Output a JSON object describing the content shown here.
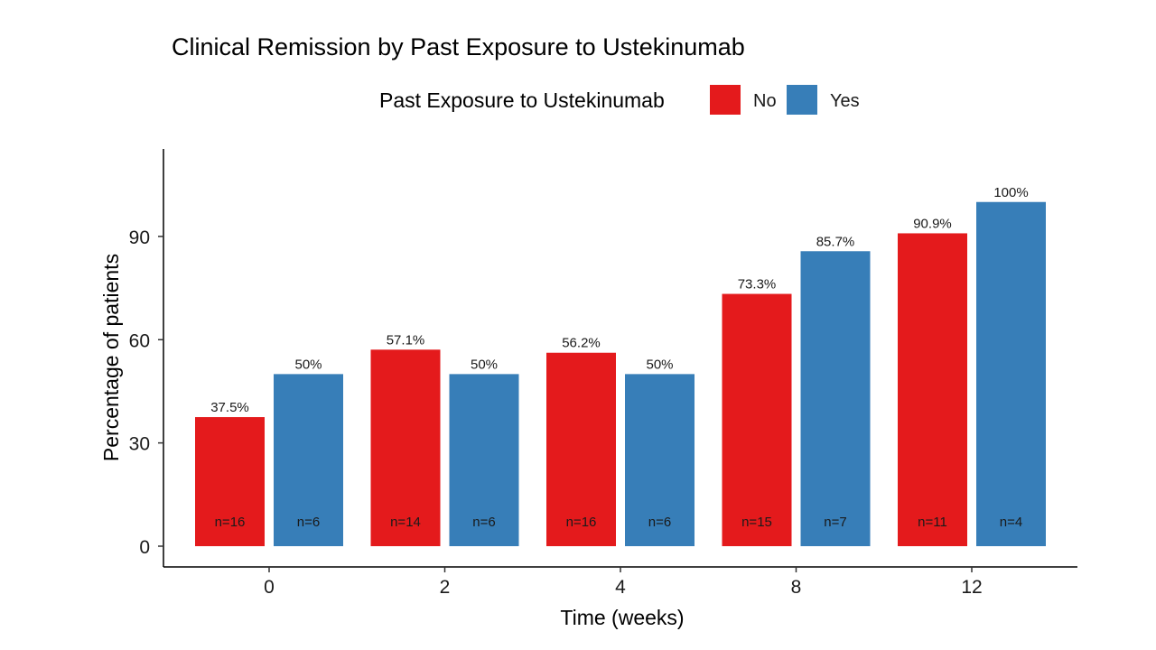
{
  "chart_data": {
    "type": "bar",
    "title": "Clinical Remission by Past Exposure to Ustekinumab",
    "xlabel": "Time (weeks)",
    "ylabel": "Percentage of patients",
    "categories": [
      "0",
      "2",
      "4",
      "8",
      "12"
    ],
    "ylim": [
      0,
      110
    ],
    "yticks": [
      0,
      30,
      60,
      90
    ],
    "legend": {
      "title": "Past Exposure to Ustekinumab",
      "position": "top"
    },
    "grid": false,
    "series": [
      {
        "name": "No",
        "color": "#E41A1C",
        "values": [
          37.5,
          57.1,
          56.2,
          73.3,
          90.9
        ],
        "labels": [
          "37.5%",
          "57.1%",
          "56.2%",
          "73.3%",
          "90.9%"
        ],
        "n": [
          "n=16",
          "n=14",
          "n=16",
          "n=15",
          "n=11"
        ]
      },
      {
        "name": "Yes",
        "color": "#377EB8",
        "values": [
          50,
          50,
          50,
          85.7,
          100
        ],
        "labels": [
          "50%",
          "50%",
          "50%",
          "85.7%",
          "100%"
        ],
        "n": [
          "n=6",
          "n=6",
          "n=6",
          "n=7",
          "n=4"
        ]
      }
    ]
  }
}
